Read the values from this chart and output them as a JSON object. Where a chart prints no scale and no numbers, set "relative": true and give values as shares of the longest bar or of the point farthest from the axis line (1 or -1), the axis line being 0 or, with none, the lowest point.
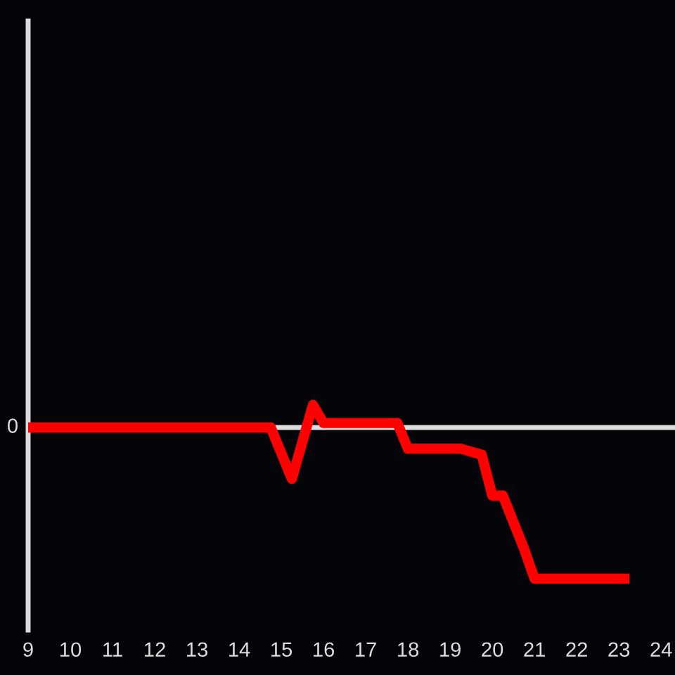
{
  "chart_data": {
    "type": "line",
    "relative": true,
    "x": [
      9,
      14.75,
      15.25,
      15.75,
      16.0,
      17.75,
      18.0,
      19.25,
      19.75,
      20.0,
      20.25,
      20.75,
      21.0,
      23.25
    ],
    "series": [
      {
        "color": "#ff0000",
        "values": [
          0,
          0,
          -0.34,
          0.15,
          0.03,
          0.03,
          -0.14,
          -0.14,
          -0.18,
          -0.45,
          -0.45,
          -0.8,
          -1,
          -1
        ]
      }
    ],
    "xlim": [
      9,
      24.33
    ],
    "xticks": [
      9,
      10,
      11,
      12,
      13,
      14,
      15,
      16,
      17,
      18,
      19,
      20,
      21,
      22,
      23,
      24
    ],
    "annotations": [
      "0"
    ],
    "grid": false,
    "legend": false,
    "line_style": "solid"
  }
}
